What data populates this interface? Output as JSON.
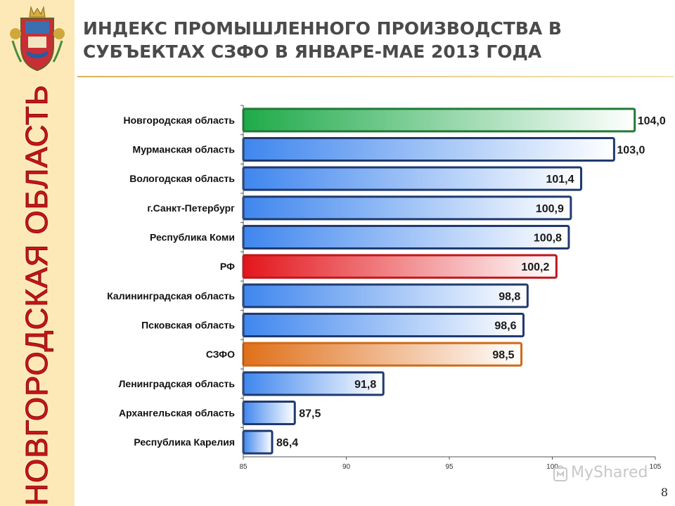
{
  "header": {
    "title_line1": "ИНДЕКС ПРОМЫШЛЕННОГО ПРОИЗВОДСТВА В",
    "title_line2": "СУБЪЕКТАХ СЗФО В ЯНВАРЕ-МАЕ 2013 ГОДА"
  },
  "sidebar": {
    "region_label": "НОВГОРОДСКАЯ ОБЛАСТЬ",
    "emblem_icon": "coat-of-arms-icon"
  },
  "page_number": "8",
  "watermark": {
    "text": "MyShared",
    "icon": "myshared-logo-icon"
  },
  "colors": {
    "sidebar_bg": "#fde9b8",
    "region_text": "#c8141a",
    "default_bar": "#4a8ff0",
    "default_border": "#1f3a6e",
    "highlight_green": "#1faa4a",
    "highlight_red": "#e3161c",
    "highlight_orange": "#e2761b"
  },
  "chart_data": {
    "type": "bar",
    "orientation": "horizontal",
    "categories": [
      "Новгородская область",
      "Мурманская область",
      "Вологодская область",
      "г.Санкт-Петербург",
      "Республика Коми",
      "РФ",
      "Калининградская область",
      "Псковская область",
      "СЗФО",
      "Ленинградская область",
      "Архангельская область",
      "Республика Карелия"
    ],
    "values": [
      104.0,
      103.0,
      101.4,
      100.9,
      100.8,
      100.2,
      98.8,
      98.6,
      98.5,
      91.8,
      87.5,
      86.4
    ],
    "value_labels": [
      "104,0",
      "103,0",
      "101,4",
      "100,9",
      "100,8",
      "100,2",
      "98,8",
      "98,6",
      "98,5",
      "91,8",
      "87,5",
      "86,4"
    ],
    "bar_styles": [
      "green",
      "blue",
      "blue",
      "blue",
      "blue",
      "red",
      "blue",
      "blue",
      "orange",
      "blue",
      "blue",
      "blue"
    ],
    "xlim": [
      85,
      105
    ],
    "x_ticks": [
      "85",
      "90",
      "95",
      "100",
      "105"
    ],
    "x_tick_values": [
      85,
      90,
      95,
      100,
      105
    ],
    "grid": false,
    "legend": "none",
    "title": "",
    "xlabel": "",
    "ylabel": ""
  }
}
